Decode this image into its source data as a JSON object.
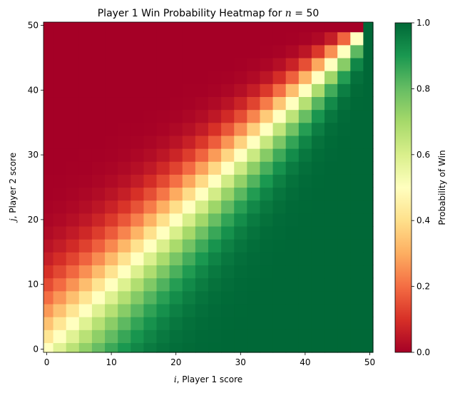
{
  "chart_data": {
    "type": "heatmap",
    "title": {
      "prefix": "Player 1 Win Probability Heatmap for ",
      "var": "n",
      "eq": " = 50"
    },
    "xlabel": {
      "var": "i",
      "rest": ", Player 1 score"
    },
    "ylabel": {
      "var": "j",
      "rest": ", Player 2 score"
    },
    "n": 50,
    "x_range": [
      0,
      50
    ],
    "y_range": [
      0,
      50
    ],
    "x_ticks": [
      "0",
      "10",
      "20",
      "30",
      "40",
      "50"
    ],
    "y_ticks": [
      "0",
      "10",
      "20",
      "30",
      "40",
      "50"
    ],
    "cell_step": 2,
    "x_values": [
      0,
      2,
      4,
      6,
      8,
      10,
      12,
      14,
      16,
      18,
      20,
      22,
      24,
      26,
      28,
      30,
      32,
      34,
      36,
      38,
      40,
      42,
      44,
      46,
      48,
      50
    ],
    "y_values": [
      0,
      2,
      4,
      6,
      8,
      10,
      12,
      14,
      16,
      18,
      20,
      22,
      24,
      26,
      28,
      30,
      32,
      34,
      36,
      38,
      40,
      42,
      44,
      46,
      48,
      50
    ],
    "value_model": "P(win) for player 1 at scores (i, j), first to n wins",
    "colorbar": {
      "label": "Probability of Win",
      "range": [
        0.0,
        1.0
      ],
      "ticks": [
        "0.0",
        "0.2",
        "0.4",
        "0.6",
        "0.8",
        "1.0"
      ],
      "colormap": "RdYlGn",
      "stops": [
        "#a50026",
        "#d73027",
        "#f46d43",
        "#fdae61",
        "#fee08b",
        "#ffffbf",
        "#d9ef8b",
        "#a6d96a",
        "#66bd63",
        "#1a9850",
        "#006837"
      ]
    },
    "grid": false
  }
}
